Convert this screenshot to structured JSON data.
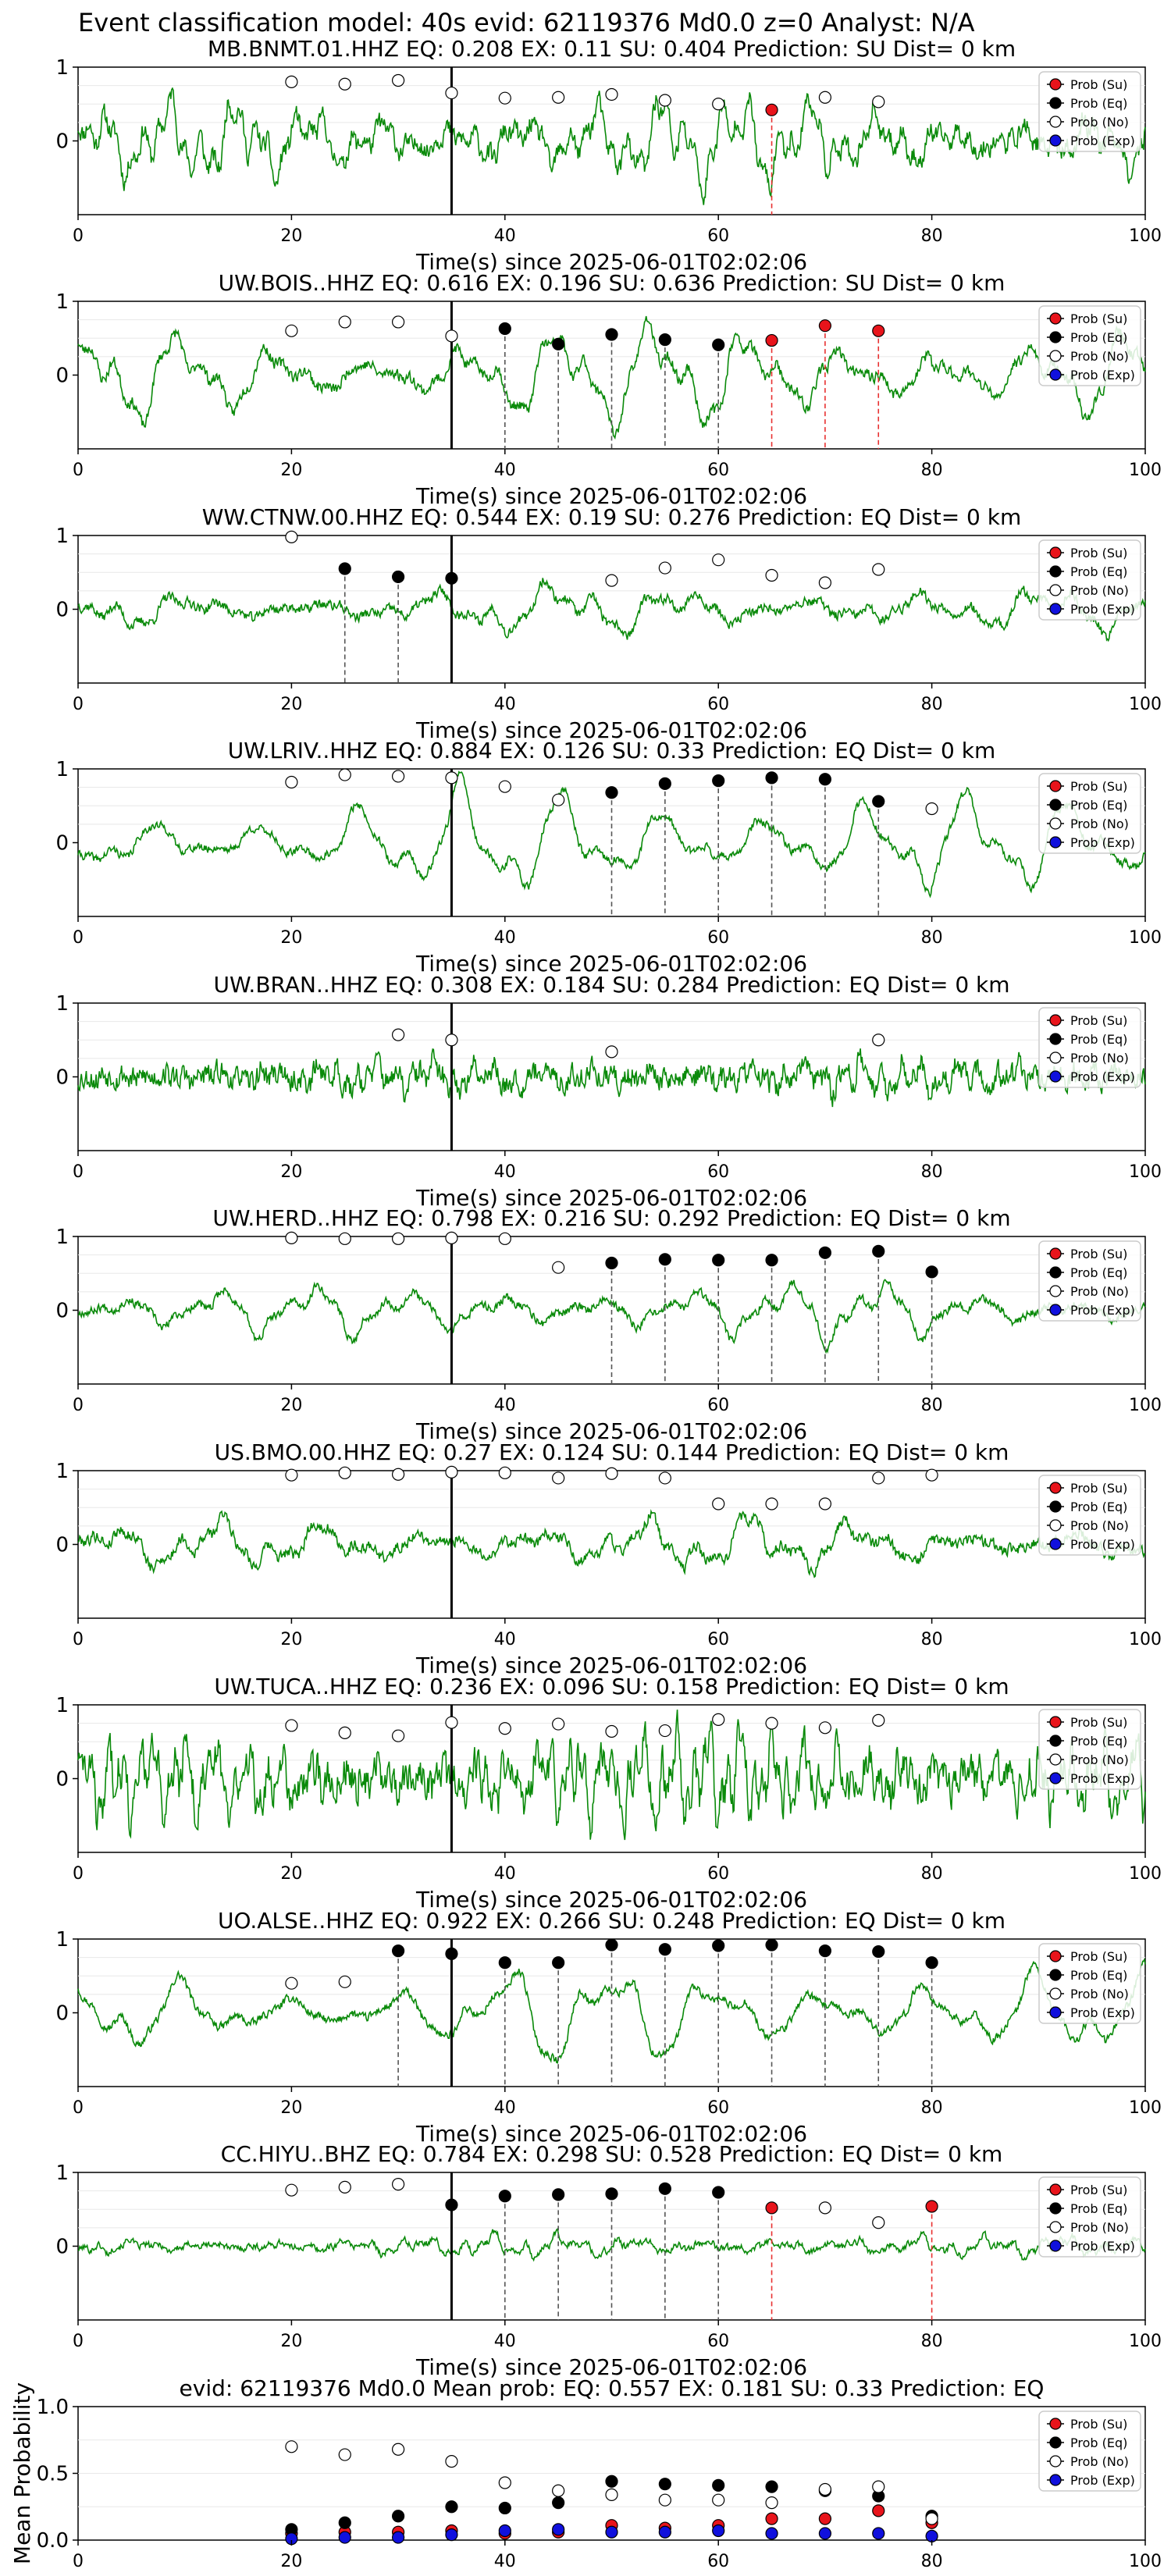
{
  "suptitle": "Event classification model: 40s evid: 62119376 Md0.0 z=0 Analyst: N/A",
  "legend_labels": [
    "Prob (Su)",
    "Prob (Eq)",
    "Prob (No)",
    "Prob (Exp)"
  ],
  "colors": {
    "su": "#e8141b",
    "eq": "#000000",
    "no": "#ffffff",
    "exp": "#1010dd",
    "trace": "#0a8a0a",
    "su_line": "#e83030"
  },
  "chart_data": [
    {
      "type": "line",
      "title": "MB.BNMT.01.HHZ   EQ: 0.208  EX: 0.11  SU: 0.404   Prediction: SU    Dist= 0 km",
      "xlabel": "Time(s) since 2025-06-01T02:02:06",
      "xlim": [
        0,
        100
      ],
      "xticks": [
        0,
        20,
        40,
        60,
        80,
        100
      ],
      "yticks": [
        1,
        0
      ],
      "ylim": [
        -1,
        1
      ],
      "marker_time": 35,
      "points": [
        {
          "x": 20,
          "y": 0.8,
          "c": "no"
        },
        {
          "x": 25,
          "y": 0.77,
          "c": "no"
        },
        {
          "x": 30,
          "y": 0.82,
          "c": "no"
        },
        {
          "x": 35,
          "y": 0.65,
          "c": "no"
        },
        {
          "x": 40,
          "y": 0.58,
          "c": "no"
        },
        {
          "x": 45,
          "y": 0.59,
          "c": "no"
        },
        {
          "x": 50,
          "y": 0.63,
          "c": "no"
        },
        {
          "x": 55,
          "y": 0.55,
          "c": "no"
        },
        {
          "x": 60,
          "y": 0.5,
          "c": "no"
        },
        {
          "x": 65,
          "y": 0.42,
          "c": "su"
        },
        {
          "x": 70,
          "y": 0.59,
          "c": "no"
        },
        {
          "x": 75,
          "y": 0.53,
          "c": "no"
        }
      ]
    },
    {
      "type": "line",
      "title": "UW.BOIS..HHZ   EQ: 0.616  EX: 0.196  SU: 0.636   Prediction: SU    Dist= 0 km",
      "xlabel": "Time(s) since 2025-06-01T02:02:06",
      "xlim": [
        0,
        100
      ],
      "xticks": [
        0,
        20,
        40,
        60,
        80,
        100
      ],
      "yticks": [
        1,
        0
      ],
      "ylim": [
        -1,
        1
      ],
      "marker_time": 35,
      "points": [
        {
          "x": 20,
          "y": 0.6,
          "c": "no"
        },
        {
          "x": 25,
          "y": 0.72,
          "c": "no"
        },
        {
          "x": 30,
          "y": 0.72,
          "c": "no"
        },
        {
          "x": 35,
          "y": 0.53,
          "c": "no"
        },
        {
          "x": 40,
          "y": 0.63,
          "c": "eq"
        },
        {
          "x": 45,
          "y": 0.42,
          "c": "eq"
        },
        {
          "x": 50,
          "y": 0.55,
          "c": "eq"
        },
        {
          "x": 55,
          "y": 0.48,
          "c": "eq"
        },
        {
          "x": 60,
          "y": 0.41,
          "c": "eq"
        },
        {
          "x": 65,
          "y": 0.47,
          "c": "su"
        },
        {
          "x": 70,
          "y": 0.67,
          "c": "su"
        },
        {
          "x": 75,
          "y": 0.6,
          "c": "su"
        }
      ]
    },
    {
      "type": "line",
      "title": "WW.CTNW.00.HHZ   EQ: 0.544  EX: 0.19  SU: 0.276   Prediction: EQ    Dist= 0 km",
      "xlabel": "Time(s) since 2025-06-01T02:02:06",
      "xlim": [
        0,
        100
      ],
      "xticks": [
        0,
        20,
        40,
        60,
        80,
        100
      ],
      "yticks": [
        1,
        0
      ],
      "ylim": [
        -1,
        1
      ],
      "marker_time": 35,
      "points": [
        {
          "x": 20,
          "y": 0.98,
          "c": "no"
        },
        {
          "x": 25,
          "y": 0.55,
          "c": "eq"
        },
        {
          "x": 30,
          "y": 0.44,
          "c": "eq"
        },
        {
          "x": 35,
          "y": 0.42,
          "c": "eq"
        },
        {
          "x": 50,
          "y": 0.39,
          "c": "no"
        },
        {
          "x": 55,
          "y": 0.56,
          "c": "no"
        },
        {
          "x": 60,
          "y": 0.67,
          "c": "no"
        },
        {
          "x": 65,
          "y": 0.46,
          "c": "no"
        },
        {
          "x": 70,
          "y": 0.36,
          "c": "no"
        },
        {
          "x": 75,
          "y": 0.54,
          "c": "no"
        }
      ]
    },
    {
      "type": "line",
      "title": "UW.LRIV..HHZ   EQ: 0.884  EX: 0.126  SU: 0.33   Prediction: EQ    Dist= 0 km",
      "xlabel": "Time(s) since 2025-06-01T02:02:06",
      "xlim": [
        0,
        100
      ],
      "xticks": [
        0,
        20,
        40,
        60,
        80,
        100
      ],
      "yticks": [
        1,
        0
      ],
      "ylim": [
        -1,
        1
      ],
      "marker_time": 35,
      "points": [
        {
          "x": 20,
          "y": 0.82,
          "c": "no"
        },
        {
          "x": 25,
          "y": 0.92,
          "c": "no"
        },
        {
          "x": 30,
          "y": 0.9,
          "c": "no"
        },
        {
          "x": 35,
          "y": 0.88,
          "c": "no"
        },
        {
          "x": 40,
          "y": 0.76,
          "c": "no"
        },
        {
          "x": 45,
          "y": 0.58,
          "c": "no"
        },
        {
          "x": 50,
          "y": 0.68,
          "c": "eq"
        },
        {
          "x": 55,
          "y": 0.8,
          "c": "eq"
        },
        {
          "x": 60,
          "y": 0.84,
          "c": "eq"
        },
        {
          "x": 65,
          "y": 0.88,
          "c": "eq"
        },
        {
          "x": 70,
          "y": 0.86,
          "c": "eq"
        },
        {
          "x": 75,
          "y": 0.56,
          "c": "eq"
        },
        {
          "x": 80,
          "y": 0.46,
          "c": "no"
        }
      ]
    },
    {
      "type": "line",
      "title": "UW.BRAN..HHZ   EQ: 0.308  EX: 0.184  SU: 0.284   Prediction: EQ    Dist= 0 km",
      "xlabel": "Time(s) since 2025-06-01T02:02:06",
      "xlim": [
        0,
        100
      ],
      "xticks": [
        0,
        20,
        40,
        60,
        80,
        100
      ],
      "yticks": [
        1,
        0
      ],
      "ylim": [
        -1,
        1
      ],
      "marker_time": 35,
      "points": [
        {
          "x": 30,
          "y": 0.57,
          "c": "no"
        },
        {
          "x": 35,
          "y": 0.5,
          "c": "no"
        },
        {
          "x": 50,
          "y": 0.34,
          "c": "no"
        },
        {
          "x": 75,
          "y": 0.5,
          "c": "no"
        }
      ]
    },
    {
      "type": "line",
      "title": "UW.HERD..HHZ   EQ: 0.798  EX: 0.216  SU: 0.292   Prediction: EQ    Dist= 0 km",
      "xlabel": "Time(s) since 2025-06-01T02:02:06",
      "xlim": [
        0,
        100
      ],
      "xticks": [
        0,
        20,
        40,
        60,
        80,
        100
      ],
      "yticks": [
        1,
        0
      ],
      "ylim": [
        -1,
        1
      ],
      "marker_time": 35,
      "points": [
        {
          "x": 20,
          "y": 0.98,
          "c": "no"
        },
        {
          "x": 25,
          "y": 0.97,
          "c": "no"
        },
        {
          "x": 30,
          "y": 0.97,
          "c": "no"
        },
        {
          "x": 35,
          "y": 0.98,
          "c": "no"
        },
        {
          "x": 40,
          "y": 0.97,
          "c": "no"
        },
        {
          "x": 45,
          "y": 0.58,
          "c": "no"
        },
        {
          "x": 50,
          "y": 0.64,
          "c": "eq"
        },
        {
          "x": 55,
          "y": 0.69,
          "c": "eq"
        },
        {
          "x": 60,
          "y": 0.68,
          "c": "eq"
        },
        {
          "x": 65,
          "y": 0.68,
          "c": "eq"
        },
        {
          "x": 70,
          "y": 0.78,
          "c": "eq"
        },
        {
          "x": 75,
          "y": 0.8,
          "c": "eq"
        },
        {
          "x": 80,
          "y": 0.52,
          "c": "eq"
        }
      ]
    },
    {
      "type": "line",
      "title": "US.BMO.00.HHZ   EQ: 0.27  EX: 0.124  SU: 0.144   Prediction: EQ    Dist= 0 km",
      "xlabel": "Time(s) since 2025-06-01T02:02:06",
      "xlim": [
        0,
        100
      ],
      "xticks": [
        0,
        20,
        40,
        60,
        80,
        100
      ],
      "yticks": [
        1,
        0
      ],
      "ylim": [
        -1,
        1
      ],
      "marker_time": 35,
      "points": [
        {
          "x": 20,
          "y": 0.94,
          "c": "no"
        },
        {
          "x": 25,
          "y": 0.97,
          "c": "no"
        },
        {
          "x": 30,
          "y": 0.95,
          "c": "no"
        },
        {
          "x": 35,
          "y": 0.98,
          "c": "no"
        },
        {
          "x": 40,
          "y": 0.97,
          "c": "no"
        },
        {
          "x": 45,
          "y": 0.9,
          "c": "no"
        },
        {
          "x": 50,
          "y": 0.96,
          "c": "no"
        },
        {
          "x": 55,
          "y": 0.9,
          "c": "no"
        },
        {
          "x": 60,
          "y": 0.55,
          "c": "no"
        },
        {
          "x": 65,
          "y": 0.55,
          "c": "no"
        },
        {
          "x": 70,
          "y": 0.55,
          "c": "no"
        },
        {
          "x": 75,
          "y": 0.9,
          "c": "no"
        },
        {
          "x": 80,
          "y": 0.94,
          "c": "no"
        }
      ]
    },
    {
      "type": "line",
      "title": "UW.TUCA..HHZ   EQ: 0.236  EX: 0.096  SU: 0.158   Prediction: EQ    Dist= 0 km",
      "xlabel": "Time(s) since 2025-06-01T02:02:06",
      "xlim": [
        0,
        100
      ],
      "xticks": [
        0,
        20,
        40,
        60,
        80,
        100
      ],
      "yticks": [
        1,
        0
      ],
      "ylim": [
        -1,
        1
      ],
      "marker_time": 35,
      "points": [
        {
          "x": 20,
          "y": 0.72,
          "c": "no"
        },
        {
          "x": 25,
          "y": 0.62,
          "c": "no"
        },
        {
          "x": 30,
          "y": 0.58,
          "c": "no"
        },
        {
          "x": 35,
          "y": 0.76,
          "c": "no"
        },
        {
          "x": 40,
          "y": 0.68,
          "c": "no"
        },
        {
          "x": 45,
          "y": 0.74,
          "c": "no"
        },
        {
          "x": 50,
          "y": 0.64,
          "c": "no"
        },
        {
          "x": 55,
          "y": 0.65,
          "c": "no"
        },
        {
          "x": 60,
          "y": 0.8,
          "c": "no"
        },
        {
          "x": 65,
          "y": 0.75,
          "c": "no"
        },
        {
          "x": 70,
          "y": 0.69,
          "c": "no"
        },
        {
          "x": 75,
          "y": 0.79,
          "c": "no"
        }
      ]
    },
    {
      "type": "line",
      "title": "UO.ALSE..HHZ   EQ: 0.922  EX: 0.266  SU: 0.248   Prediction: EQ    Dist= 0 km",
      "xlabel": "Time(s) since 2025-06-01T02:02:06",
      "xlim": [
        0,
        100
      ],
      "xticks": [
        0,
        20,
        40,
        60,
        80,
        100
      ],
      "yticks": [
        1,
        0
      ],
      "ylim": [
        -1,
        1
      ],
      "marker_time": 35,
      "points": [
        {
          "x": 20,
          "y": 0.4,
          "c": "no"
        },
        {
          "x": 25,
          "y": 0.42,
          "c": "no"
        },
        {
          "x": 30,
          "y": 0.84,
          "c": "eq"
        },
        {
          "x": 35,
          "y": 0.8,
          "c": "eq"
        },
        {
          "x": 40,
          "y": 0.68,
          "c": "eq"
        },
        {
          "x": 45,
          "y": 0.68,
          "c": "eq"
        },
        {
          "x": 50,
          "y": 0.92,
          "c": "eq"
        },
        {
          "x": 55,
          "y": 0.86,
          "c": "eq"
        },
        {
          "x": 60,
          "y": 0.91,
          "c": "eq"
        },
        {
          "x": 65,
          "y": 0.92,
          "c": "eq"
        },
        {
          "x": 70,
          "y": 0.84,
          "c": "eq"
        },
        {
          "x": 75,
          "y": 0.83,
          "c": "eq"
        },
        {
          "x": 80,
          "y": 0.68,
          "c": "eq"
        }
      ]
    },
    {
      "type": "line",
      "title": "CC.HIYU..BHZ   EQ: 0.784  EX: 0.298  SU: 0.528   Prediction: EQ    Dist= 0 km",
      "xlabel": "Time(s) since 2025-06-01T02:02:06",
      "xlim": [
        0,
        100
      ],
      "xticks": [
        0,
        20,
        40,
        60,
        80,
        100
      ],
      "yticks": [
        1,
        0
      ],
      "ylim": [
        -1,
        1
      ],
      "marker_time": 35,
      "points": [
        {
          "x": 20,
          "y": 0.76,
          "c": "no"
        },
        {
          "x": 25,
          "y": 0.8,
          "c": "no"
        },
        {
          "x": 30,
          "y": 0.84,
          "c": "no"
        },
        {
          "x": 35,
          "y": 0.56,
          "c": "eq"
        },
        {
          "x": 40,
          "y": 0.68,
          "c": "eq"
        },
        {
          "x": 45,
          "y": 0.7,
          "c": "eq"
        },
        {
          "x": 50,
          "y": 0.71,
          "c": "eq"
        },
        {
          "x": 55,
          "y": 0.78,
          "c": "eq"
        },
        {
          "x": 60,
          "y": 0.73,
          "c": "eq"
        },
        {
          "x": 65,
          "y": 0.52,
          "c": "su"
        },
        {
          "x": 70,
          "y": 0.52,
          "c": "no"
        },
        {
          "x": 75,
          "y": 0.32,
          "c": "no"
        },
        {
          "x": 80,
          "y": 0.54,
          "c": "su"
        }
      ]
    },
    {
      "type": "scatter",
      "title": "evid: 62119376  Md0.0   Mean prob:   EQ: 0.557  EX: 0.181  SU: 0.33   Prediction: EQ",
      "ylabel": "Mean Probability",
      "xlim": [
        0,
        100
      ],
      "ylim": [
        0,
        1
      ],
      "xticks": [
        0,
        20,
        40,
        60,
        80,
        100
      ],
      "yticks": [
        1.0,
        0.5,
        0.0
      ],
      "ytick_labels": [
        "1.0",
        "0.5",
        "0.0"
      ],
      "x": [
        20,
        25,
        30,
        35,
        40,
        45,
        50,
        55,
        60,
        65,
        70,
        75,
        80
      ],
      "series": [
        {
          "name": "Prob (Su)",
          "key": "su",
          "values": [
            0.05,
            0.06,
            0.06,
            0.07,
            0.05,
            0.06,
            0.11,
            0.09,
            0.11,
            0.16,
            0.16,
            0.22,
            0.13
          ]
        },
        {
          "name": "Prob (Eq)",
          "key": "eq",
          "values": [
            0.08,
            0.13,
            0.18,
            0.25,
            0.24,
            0.28,
            0.44,
            0.42,
            0.41,
            0.4,
            0.37,
            0.33,
            0.18
          ]
        },
        {
          "name": "Prob (No)",
          "key": "no",
          "values": [
            0.7,
            0.64,
            0.68,
            0.59,
            0.43,
            0.37,
            0.34,
            0.3,
            0.3,
            0.28,
            0.38,
            0.4,
            0.16
          ]
        },
        {
          "name": "Prob (Exp)",
          "key": "exp",
          "values": [
            0.01,
            0.02,
            0.02,
            0.04,
            0.07,
            0.08,
            0.06,
            0.06,
            0.07,
            0.05,
            0.05,
            0.05,
            0.03
          ]
        }
      ]
    }
  ]
}
